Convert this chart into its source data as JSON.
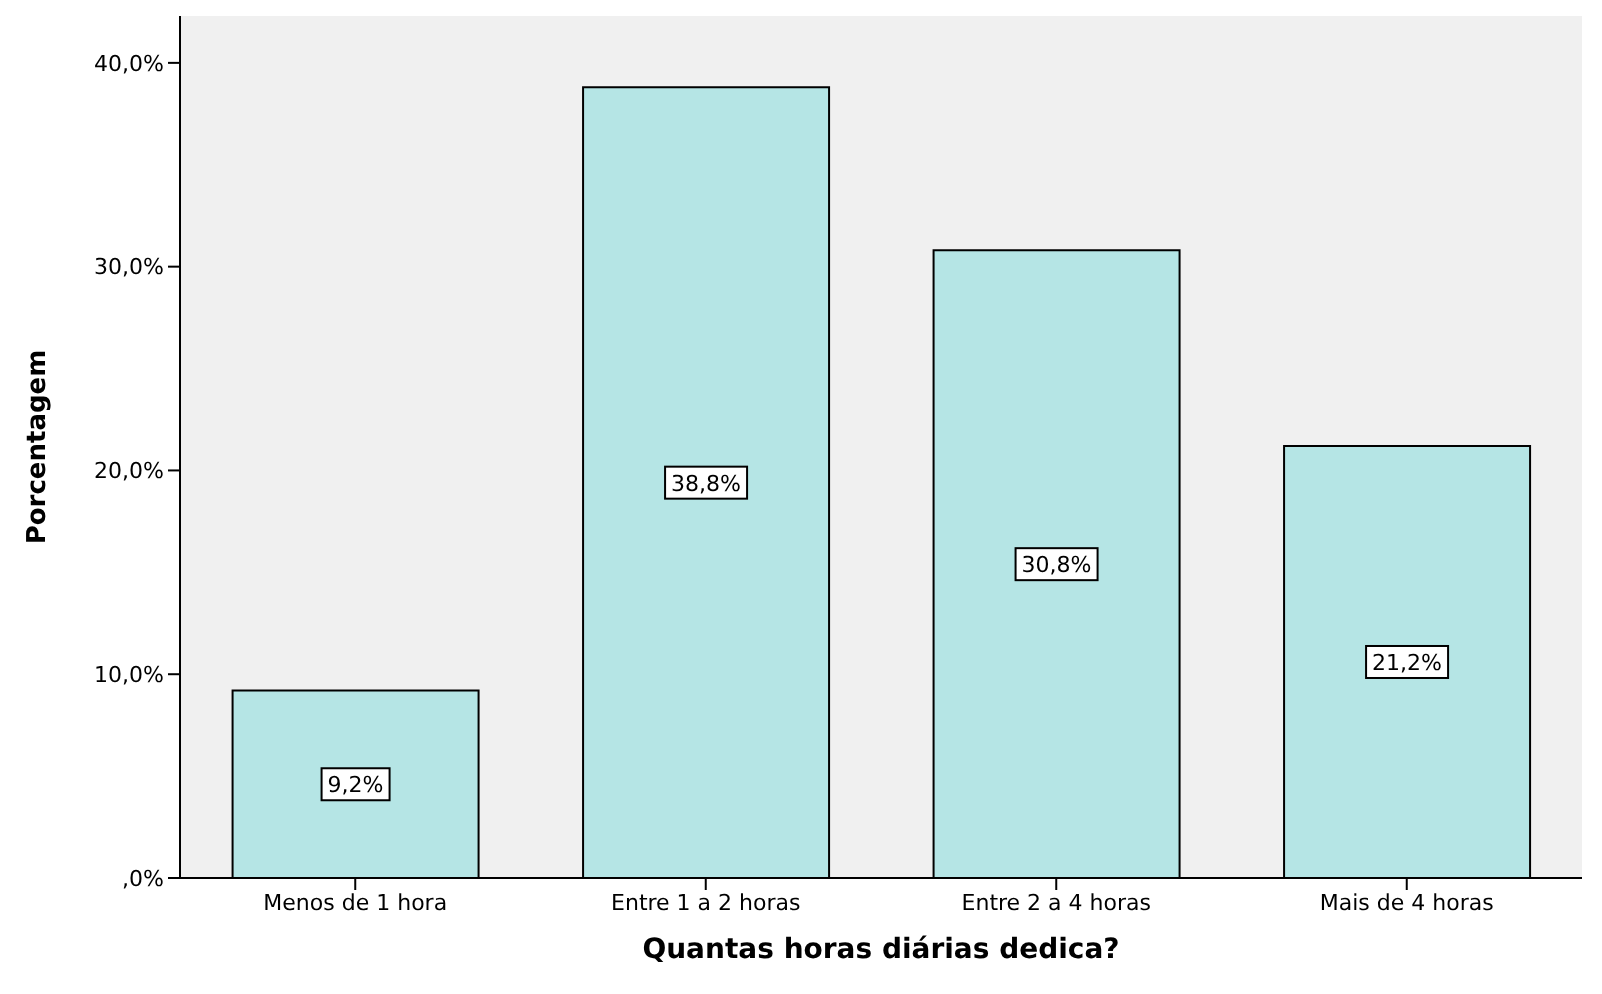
{
  "chart_data": {
    "type": "bar",
    "xlabel": "Quantas horas diárias dedica?",
    "ylabel": "Porcentagem",
    "categories": [
      "Menos de 1 hora",
      "Entre 1 a 2 horas",
      "Entre 2 a 4 horas",
      "Mais de 4 horas"
    ],
    "values": [
      9.2,
      38.8,
      30.8,
      21.2
    ],
    "value_labels": [
      "9,2%",
      "38,8%",
      "30,8%",
      "21,2%"
    ],
    "color": "#b5e5e5",
    "ylim": [
      0,
      42.3
    ],
    "yticks": [
      {
        "value": 0,
        "label": ",0%"
      },
      {
        "value": 10,
        "label": "10,0%"
      },
      {
        "value": 20,
        "label": "20,0%"
      },
      {
        "value": 30,
        "label": "30,0%"
      },
      {
        "value": 40,
        "label": "40,0%"
      }
    ]
  }
}
